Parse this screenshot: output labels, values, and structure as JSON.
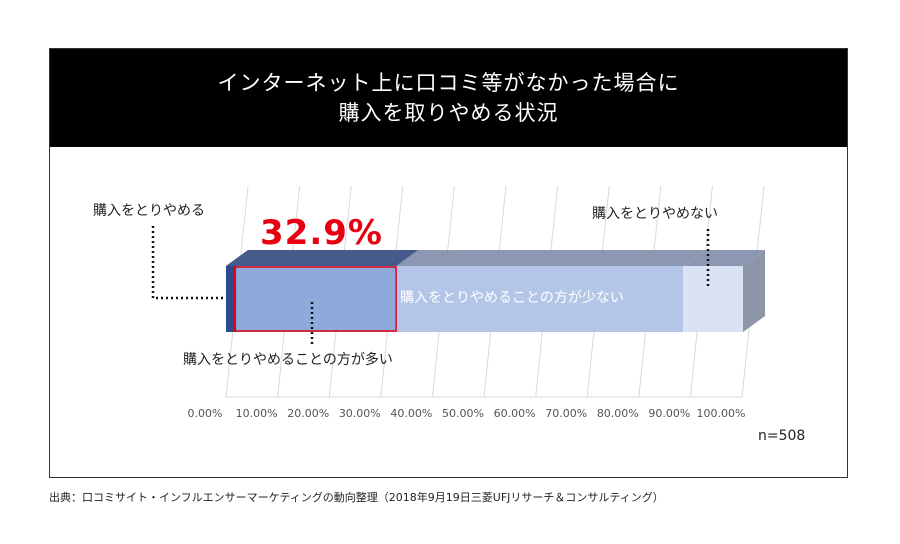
{
  "title": {
    "line1": "インターネット上に口コミ等がなかった場合に",
    "line2": "購入を取りやめる状況"
  },
  "highlight_value": "32.9%",
  "sample_size": "n=508",
  "source": "出典：口コミサイト・インフルエンサーマーケティングの動向整理（2018年9月19日三菱UFJリサーチ＆コンサルティング）",
  "chart_data": {
    "type": "bar",
    "orientation": "horizontal-stacked-100",
    "xlim": [
      0,
      100
    ],
    "x_ticks": [
      "0.00%",
      "10.00%",
      "20.00%",
      "30.00%",
      "40.00%",
      "50.00%",
      "60.00%",
      "70.00%",
      "80.00%",
      "90.00%",
      "100.00%"
    ],
    "grid": true,
    "series": [
      {
        "name": "購入をとりやめる",
        "value": 2.0,
        "color": "#2e4a8a"
      },
      {
        "name": "購入をとりやめることの方が多い",
        "value": 30.9,
        "color": "#8eaadb"
      },
      {
        "name": "購入をとりやめることの方が少ない",
        "value": 55.5,
        "color": "#b4c6e7"
      },
      {
        "name": "購入をとりやめない",
        "value": 11.6,
        "color": "#dae3f3"
      }
    ]
  }
}
